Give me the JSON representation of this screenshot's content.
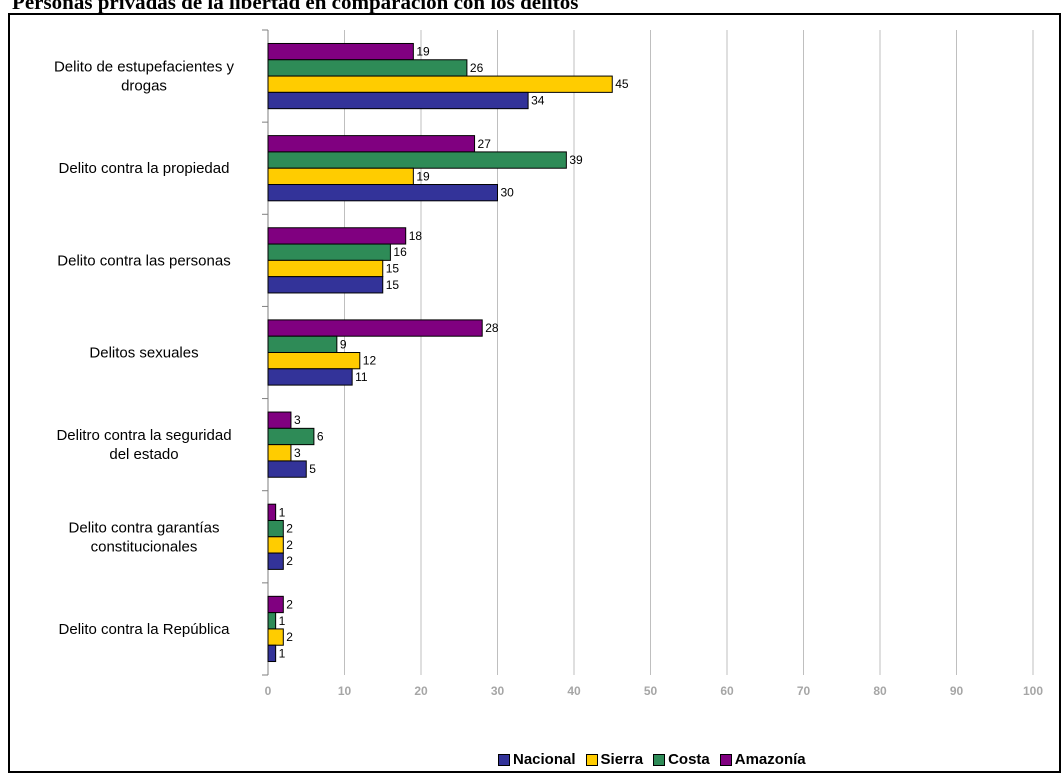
{
  "chart_data": {
    "type": "bar",
    "orientation": "horizontal",
    "title": "Personas privadas de la libertad en comparación con los delitos",
    "categories": [
      "Delito de estupefacientes y drogas",
      "Delito contra la propiedad",
      "Delito contra las personas",
      "Delitos sexuales",
      "Delitro contra la seguridad del estado",
      "Delito contra garantías constitucionales",
      "Delito contra la República"
    ],
    "series": [
      {
        "name": "Nacional",
        "color": "#333399",
        "values": [
          34,
          30,
          15,
          11,
          5,
          2,
          1
        ]
      },
      {
        "name": "Sierra",
        "color": "#ffcc00",
        "values": [
          45,
          19,
          15,
          12,
          3,
          2,
          2
        ]
      },
      {
        "name": "Costa",
        "color": "#2e8b57",
        "values": [
          26,
          39,
          16,
          9,
          6,
          2,
          1
        ]
      },
      {
        "name": "Amazonía",
        "color": "#800080",
        "values": [
          19,
          27,
          18,
          28,
          3,
          1,
          2
        ]
      }
    ],
    "xlim": [
      0,
      100
    ],
    "xticks": [
      "0",
      "10",
      "20",
      "30",
      "40",
      "50",
      "60",
      "70",
      "80",
      "90",
      "100"
    ],
    "xlabel": "",
    "ylabel": "",
    "grid": true,
    "legend_position": "bottom"
  }
}
